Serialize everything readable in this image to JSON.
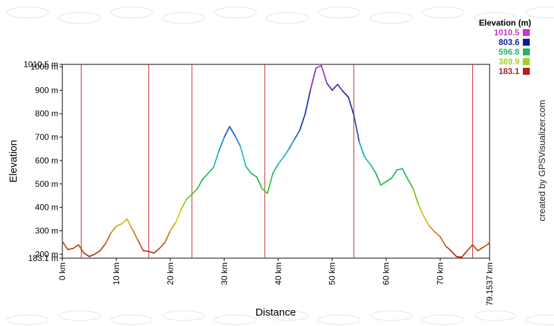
{
  "chart_data": {
    "type": "line",
    "title": "",
    "xlabel": "Distance",
    "ylabel": "Elevation",
    "xlim": [
      0,
      79.1537
    ],
    "ylim": [
      183.1,
      1010.5
    ],
    "x_ticks": [
      0,
      10,
      20,
      30,
      40,
      50,
      60,
      70,
      79.1537
    ],
    "x_tick_labels": [
      "0 km",
      "10 km",
      "20 km",
      "30 km",
      "40 km",
      "50 km",
      "60 km",
      "70 km",
      "79.1537 km"
    ],
    "y_ticks": [
      183.1,
      200,
      300,
      400,
      500,
      600,
      700,
      800,
      900,
      1000,
      1010.5
    ],
    "y_tick_labels": [
      "183.1 m",
      "200 m",
      "300 m",
      "400 m",
      "500 m",
      "600 m",
      "700 m",
      "800 m",
      "900 m",
      "1000 m",
      "1010.5 m"
    ],
    "vertical_markers_km": [
      3.5,
      16,
      24,
      37.5,
      54,
      76
    ],
    "grid": false,
    "legend": {
      "title": "Elevation (m)",
      "placement": "top-right",
      "entries": [
        {
          "label": "1010.5",
          "color": "#cc33cc"
        },
        {
          "label": "803.6",
          "color": "#0a1e9c"
        },
        {
          "label": "596.8",
          "color": "#1fb85a"
        },
        {
          "label": "389.9",
          "color": "#a4d11d"
        },
        {
          "label": "183.1",
          "color": "#b51d1d"
        }
      ]
    },
    "series": [
      {
        "x": [
          0,
          1,
          2,
          3,
          4,
          5,
          6,
          7,
          8,
          9,
          10,
          11,
          12,
          13,
          14,
          15,
          16,
          17,
          18,
          19,
          20,
          21,
          22,
          23,
          24,
          25,
          26,
          27,
          28,
          29,
          30,
          31,
          32,
          33,
          34,
          35,
          36,
          37,
          38,
          39,
          40,
          41,
          42,
          43,
          44,
          45,
          46,
          47,
          48,
          49,
          50,
          51,
          52,
          53,
          54,
          55,
          56,
          57,
          58,
          59,
          60,
          61,
          62,
          63,
          64,
          65,
          66,
          67,
          68,
          69,
          70,
          71,
          72,
          73,
          74,
          75,
          76,
          77,
          78,
          79,
          79.1537
        ],
        "y": [
          255,
          220,
          225,
          240,
          205,
          190,
          200,
          215,
          245,
          290,
          320,
          330,
          350,
          305,
          260,
          215,
          212,
          205,
          225,
          250,
          300,
          335,
          390,
          435,
          455,
          480,
          520,
          545,
          570,
          640,
          700,
          745,
          705,
          660,
          575,
          545,
          530,
          480,
          460,
          545,
          585,
          615,
          650,
          690,
          730,
          800,
          905,
          995,
          1005,
          930,
          900,
          925,
          895,
          870,
          795,
          680,
          615,
          585,
          550,
          495,
          510,
          525,
          560,
          565,
          520,
          480,
          410,
          360,
          320,
          295,
          275,
          235,
          215,
          190,
          187,
          215,
          240,
          215,
          230,
          245,
          255
        ]
      }
    ]
  },
  "watermark": "created by GPSVisualizer.com"
}
